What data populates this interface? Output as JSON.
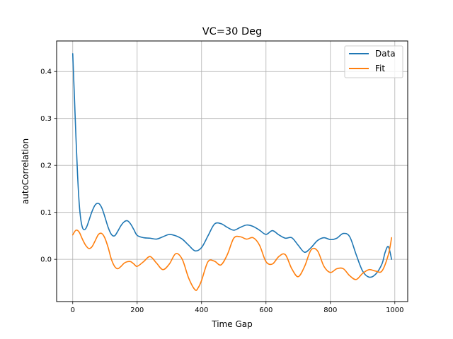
{
  "chart_data": {
    "type": "line",
    "title": "VC=30 Deg",
    "xlabel": "Time Gap",
    "ylabel": "autoCorrelation",
    "xlim": [
      -50,
      1040
    ],
    "ylim": [
      -0.09,
      0.465
    ],
    "xticks": [
      0,
      200,
      400,
      600,
      800,
      1000
    ],
    "yticks": [
      0.0,
      0.1,
      0.2,
      0.3,
      0.4
    ],
    "ytick_labels": [
      "0.0",
      "0.1",
      "0.2",
      "0.3",
      "0.4"
    ],
    "grid": true,
    "legend_position": "top-right",
    "series": [
      {
        "name": "Data",
        "color": "#1f77b4",
        "x": [
          0,
          5,
          10,
          15,
          20,
          25,
          30,
          35,
          40,
          45,
          50,
          60,
          70,
          80,
          90,
          100,
          110,
          120,
          130,
          140,
          150,
          160,
          170,
          180,
          190,
          200,
          220,
          240,
          260,
          280,
          300,
          320,
          340,
          360,
          380,
          400,
          420,
          440,
          460,
          480,
          500,
          520,
          540,
          560,
          580,
          600,
          620,
          640,
          660,
          680,
          700,
          720,
          740,
          760,
          780,
          800,
          820,
          840,
          860,
          880,
          900,
          920,
          940,
          960,
          970,
          980,
          990
        ],
        "y": [
          0.438,
          0.35,
          0.26,
          0.18,
          0.12,
          0.085,
          0.068,
          0.063,
          0.065,
          0.072,
          0.082,
          0.102,
          0.116,
          0.119,
          0.11,
          0.09,
          0.068,
          0.053,
          0.05,
          0.06,
          0.072,
          0.08,
          0.082,
          0.075,
          0.063,
          0.051,
          0.046,
          0.045,
          0.043,
          0.048,
          0.053,
          0.05,
          0.043,
          0.03,
          0.018,
          0.025,
          0.05,
          0.075,
          0.076,
          0.068,
          0.062,
          0.068,
          0.073,
          0.07,
          0.062,
          0.053,
          0.061,
          0.052,
          0.045,
          0.046,
          0.03,
          0.015,
          0.025,
          0.04,
          0.046,
          0.042,
          0.045,
          0.055,
          0.048,
          0.01,
          -0.025,
          -0.038,
          -0.032,
          -0.01,
          0.015,
          0.027,
          0.0
        ]
      },
      {
        "name": "Fit",
        "color": "#ff7f0e",
        "x": [
          0,
          10,
          20,
          30,
          40,
          50,
          60,
          70,
          80,
          90,
          100,
          110,
          120,
          130,
          140,
          150,
          160,
          170,
          180,
          190,
          200,
          220,
          240,
          260,
          280,
          300,
          320,
          340,
          360,
          380,
          390,
          400,
          420,
          440,
          460,
          480,
          500,
          520,
          540,
          560,
          580,
          600,
          620,
          640,
          660,
          680,
          700,
          720,
          740,
          760,
          780,
          800,
          820,
          840,
          860,
          880,
          900,
          920,
          940,
          960,
          980,
          990
        ],
        "y": [
          0.052,
          0.062,
          0.058,
          0.043,
          0.03,
          0.023,
          0.027,
          0.04,
          0.053,
          0.055,
          0.045,
          0.025,
          0.0,
          -0.015,
          -0.02,
          -0.015,
          -0.008,
          -0.005,
          -0.005,
          -0.01,
          -0.015,
          -0.005,
          0.006,
          -0.008,
          -0.022,
          -0.01,
          0.012,
          0.0,
          -0.04,
          -0.065,
          -0.06,
          -0.045,
          -0.005,
          -0.004,
          -0.012,
          0.01,
          0.045,
          0.048,
          0.043,
          0.046,
          0.03,
          -0.005,
          -0.01,
          0.006,
          0.01,
          -0.02,
          -0.037,
          -0.015,
          0.02,
          0.018,
          -0.015,
          -0.028,
          -0.02,
          -0.02,
          -0.035,
          -0.043,
          -0.03,
          -0.022,
          -0.025,
          -0.025,
          0.01,
          0.046
        ]
      }
    ]
  }
}
